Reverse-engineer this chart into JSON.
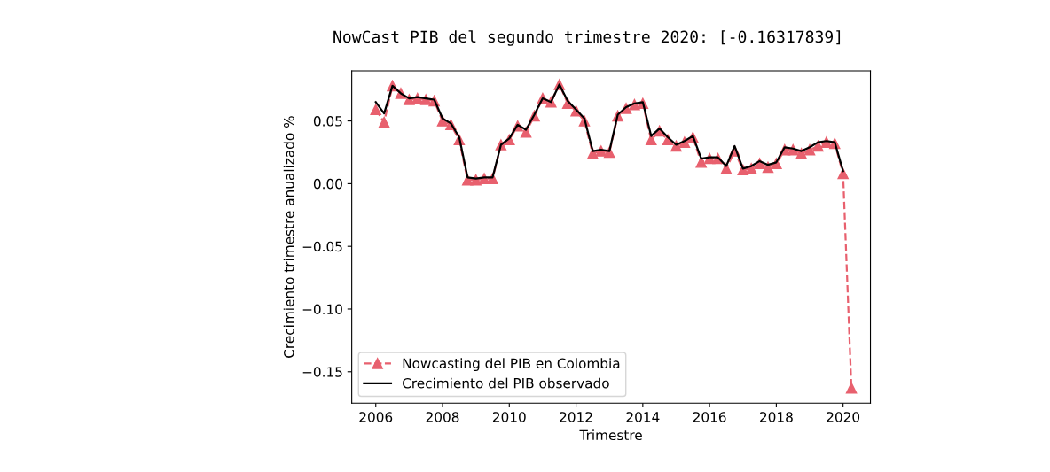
{
  "chart_data": {
    "type": "line",
    "title": "NowCast PIB del segundo trimestre 2020: [-0.16317839]",
    "xlabel": "Trimestre",
    "ylabel": "Crecimiento trimestre anualizado %",
    "x": [
      2006.0,
      2006.25,
      2006.5,
      2006.75,
      2007.0,
      2007.25,
      2007.5,
      2007.75,
      2008.0,
      2008.25,
      2008.5,
      2008.75,
      2009.0,
      2009.25,
      2009.5,
      2009.75,
      2010.0,
      2010.25,
      2010.5,
      2010.75,
      2011.0,
      2011.25,
      2011.5,
      2011.75,
      2012.0,
      2012.25,
      2012.5,
      2012.75,
      2013.0,
      2013.25,
      2013.5,
      2013.75,
      2014.0,
      2014.25,
      2014.5,
      2014.75,
      2015.0,
      2015.25,
      2015.5,
      2015.75,
      2016.0,
      2016.25,
      2016.5,
      2016.75,
      2017.0,
      2017.25,
      2017.5,
      2017.75,
      2018.0,
      2018.25,
      2018.5,
      2018.75,
      2019.0,
      2019.25,
      2019.5,
      2019.75,
      2020.0,
      2020.25
    ],
    "series": [
      {
        "name": "Nowcasting del PIB en Colombia",
        "color": "#e8606e",
        "line_style": "dashed",
        "marker": "triangle",
        "values": [
          0.059,
          0.049,
          0.078,
          0.072,
          0.067,
          0.068,
          0.067,
          0.066,
          0.05,
          0.047,
          0.035,
          0.003,
          0.003,
          0.004,
          0.004,
          0.031,
          0.035,
          0.046,
          0.041,
          0.054,
          0.068,
          0.065,
          0.079,
          0.064,
          0.058,
          0.05,
          0.024,
          0.026,
          0.025,
          0.054,
          0.06,
          0.063,
          0.064,
          0.035,
          0.042,
          0.035,
          0.03,
          0.033,
          0.037,
          0.017,
          0.02,
          0.02,
          0.012,
          0.026,
          0.011,
          0.012,
          0.016,
          0.013,
          0.016,
          0.027,
          0.027,
          0.024,
          0.027,
          0.03,
          0.033,
          0.032,
          0.008,
          -0.163
        ]
      },
      {
        "name": "Crecimiento del PIB observado",
        "color": "#000000",
        "line_style": "solid",
        "marker": "none",
        "values": [
          0.065,
          0.056,
          0.078,
          0.072,
          0.068,
          0.069,
          0.068,
          0.067,
          0.052,
          0.048,
          0.037,
          0.005,
          0.004,
          0.005,
          0.005,
          0.031,
          0.036,
          0.047,
          0.043,
          0.055,
          0.068,
          0.065,
          0.079,
          0.066,
          0.059,
          0.052,
          0.026,
          0.027,
          0.026,
          0.055,
          0.061,
          0.064,
          0.065,
          0.038,
          0.044,
          0.037,
          0.031,
          0.034,
          0.038,
          0.02,
          0.021,
          0.021,
          0.014,
          0.03,
          0.012,
          0.014,
          0.018,
          0.015,
          0.017,
          0.029,
          0.028,
          0.026,
          0.029,
          0.033,
          0.034,
          0.033,
          0.01,
          null
        ]
      }
    ],
    "xlim": [
      2005.28,
      2020.82
    ],
    "xticks": [
      2006,
      2008,
      2010,
      2012,
      2014,
      2016,
      2018,
      2020
    ],
    "ylim": [
      -0.175,
      0.09
    ],
    "yticks": [
      {
        "value": -0.15,
        "label": "−0.15"
      },
      {
        "value": -0.1,
        "label": "−0.10"
      },
      {
        "value": -0.05,
        "label": "−0.05"
      },
      {
        "value": 0,
        "label": "0.00"
      },
      {
        "value": 0.05,
        "label": "0.05"
      }
    ],
    "legend": "bottom left",
    "grid": false
  }
}
